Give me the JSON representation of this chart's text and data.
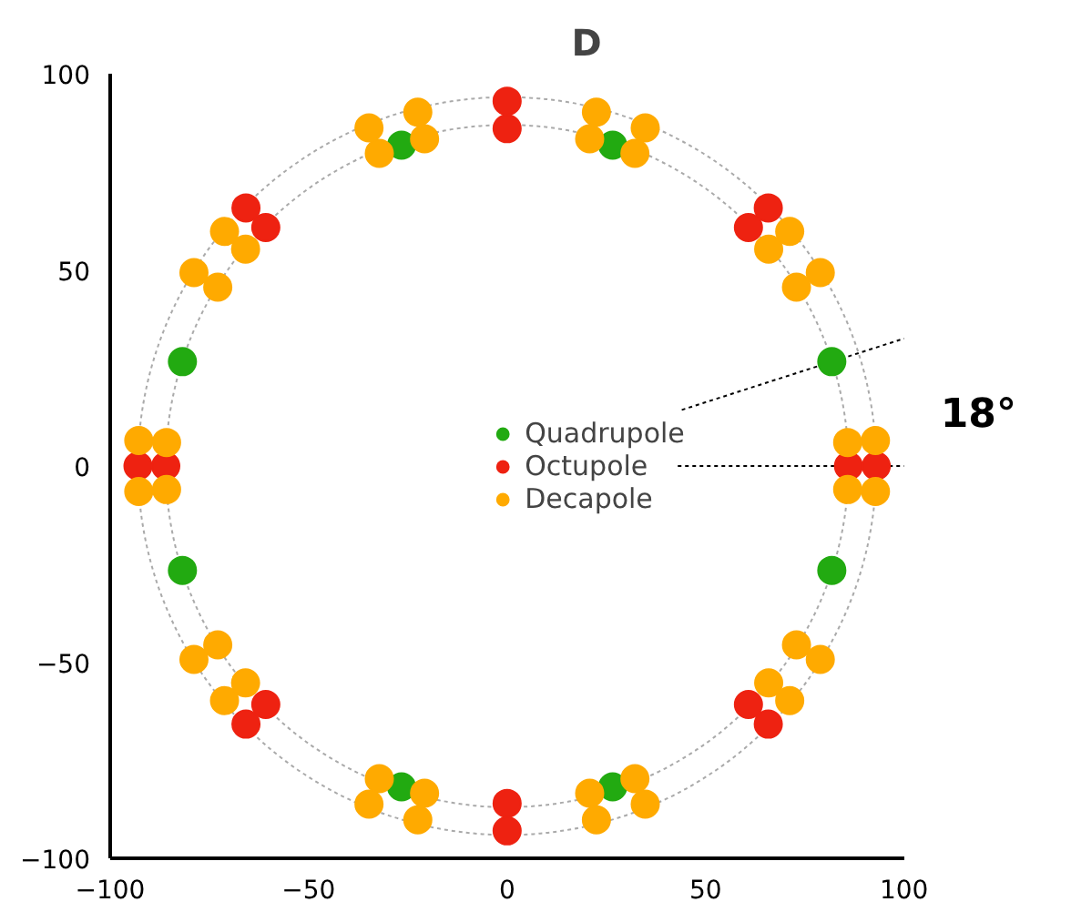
{
  "chart_data": {
    "type": "scatter",
    "title": "D",
    "xlim": [
      -100,
      100
    ],
    "ylim": [
      -100,
      100
    ],
    "xticks": [
      -100,
      -50,
      0,
      50,
      100
    ],
    "yticks": [
      -100,
      -50,
      0,
      50,
      100
    ],
    "grid": false,
    "legend": "center",
    "marker": "circle",
    "annotations": [
      "18°"
    ],
    "series": [
      {
        "type": "line",
        "color": "#000000",
        "line_style": "dotted",
        "marker": "none",
        "x": [
          43,
          100
        ],
        "values": [
          0,
          0
        ]
      },
      {
        "type": "line",
        "color": "#000000",
        "line_style": "dotted",
        "marker": "none",
        "x": [
          44,
          100
        ],
        "values": [
          14.3,
          32.5
        ]
      },
      {
        "name": "Quadrupole",
        "color": "#22aa11",
        "x": [
          81.8,
          26.6,
          -26.6,
          -81.8,
          -81.8,
          -26.6,
          26.6,
          81.8
        ],
        "values": [
          26.6,
          81.8,
          81.8,
          26.6,
          -26.6,
          -81.8,
          -81.8,
          -26.6
        ]
      },
      {
        "name": "Octupole",
        "color": "#ee2211",
        "x": [
          86,
          0,
          -86,
          0,
          60.8,
          -60.8,
          -60.8,
          60.8,
          93,
          0,
          -93,
          0,
          65.8,
          -65.8,
          -65.8,
          65.8
        ],
        "values": [
          0,
          86,
          0,
          -86,
          60.8,
          60.8,
          -60.8,
          -60.8,
          0,
          93,
          0,
          -93,
          65.8,
          65.8,
          -65.8,
          -65.8
        ]
      },
      {
        "name": "Decapole",
        "color": "#ffaa00",
        "x": [
          85.8,
          72.9,
          65.9,
          32.2,
          20.8,
          -85.8,
          -72.9,
          -65.9,
          -32.2,
          -20.8,
          -85.8,
          -72.9,
          -65.9,
          -32.2,
          -20.8,
          85.8,
          72.9,
          65.9,
          32.2,
          20.8,
          92.8,
          78.9,
          71.2,
          34.8,
          22.5,
          -92.8,
          -78.9,
          -71.2,
          -34.8,
          -22.5,
          -92.8,
          -78.9,
          -71.2,
          -34.8,
          -22.5,
          92.8,
          78.9,
          71.2,
          34.8,
          22.5
        ],
        "values": [
          6.0,
          45.6,
          55.3,
          79.7,
          83.4,
          6.0,
          45.6,
          55.3,
          79.7,
          83.4,
          -6.0,
          -45.6,
          -55.3,
          -79.7,
          -83.4,
          -6.0,
          -45.6,
          -55.3,
          -79.7,
          -83.4,
          6.5,
          49.3,
          59.8,
          86.2,
          90.2,
          6.5,
          49.3,
          59.8,
          86.2,
          90.2,
          -6.5,
          -49.3,
          -59.8,
          -86.2,
          -90.2,
          -6.5,
          -49.3,
          -59.8,
          -86.2,
          -90.2
        ]
      }
    ]
  }
}
